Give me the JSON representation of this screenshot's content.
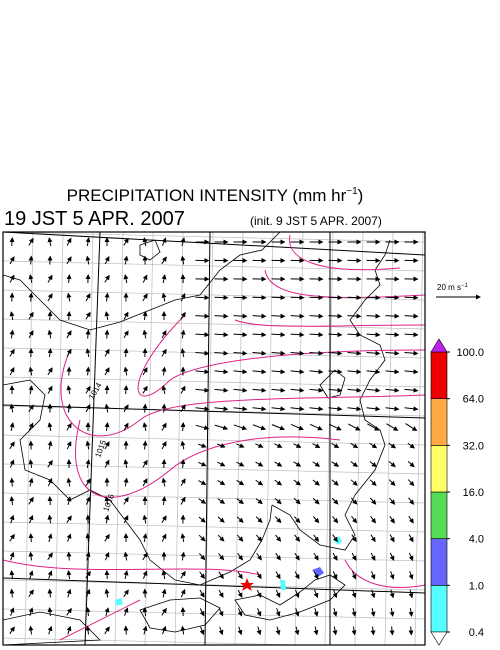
{
  "header": {
    "title": "PRECIPITATION INTENSITY (mm hr",
    "title_exponent": "−1",
    "title_end": ")",
    "valid_time": "19 JST 5 APR. 2007",
    "init_time": "(init. 9 JST 5 APR. 2007)"
  },
  "vector_key": {
    "label": "20 m s",
    "exponent": "−1"
  },
  "isobar_labels": [
    "1014",
    "1015",
    "1016"
  ],
  "colorbar": {
    "levels": [
      {
        "value": 0.4,
        "label": "0.4"
      },
      {
        "value": 1,
        "label": "1.0"
      },
      {
        "value": 4,
        "label": "4.0"
      },
      {
        "value": 16,
        "label": "16.0"
      },
      {
        "value": 32,
        "label": "32.0"
      },
      {
        "value": 64,
        "label": "64.0"
      },
      {
        "value": 100,
        "label": "100.0"
      }
    ],
    "colors": [
      "#55ffff",
      "#6666ff",
      "#55dd55",
      "#ffff66",
      "#ffaa44",
      "#ee0000"
    ],
    "under_color": "#ffffff",
    "over_color": "#bb22ee"
  }
}
